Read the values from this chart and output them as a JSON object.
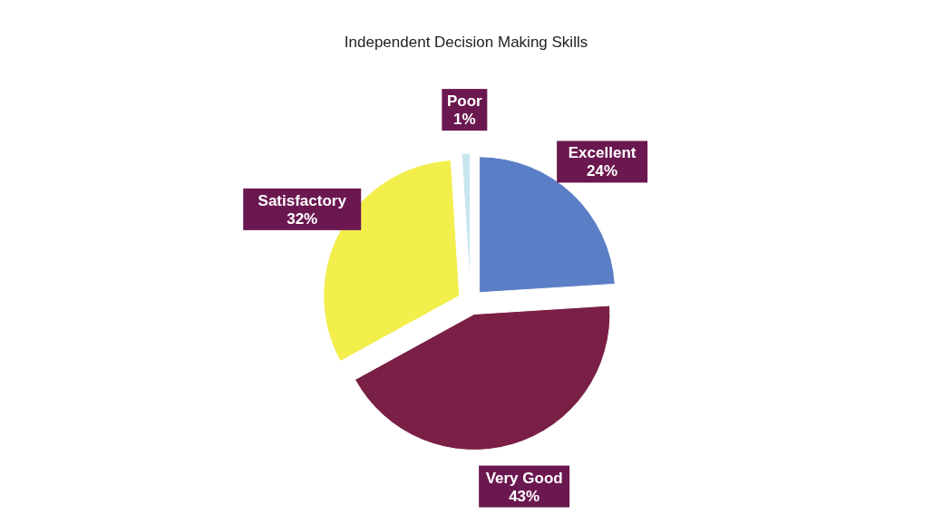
{
  "chart_data": {
    "type": "pie",
    "title": "Independent Decision Making Skills",
    "categories": [
      "Excellent",
      "Very Good",
      "Satisfactory",
      "Poor"
    ],
    "values": [
      24,
      43,
      32,
      1
    ],
    "colors": [
      "#5b7fc6",
      "#7a1f45",
      "#f2ee4c",
      "#c6e6f0"
    ],
    "value_labels": [
      "24%",
      "43%",
      "32%",
      "1%"
    ],
    "legend": false
  }
}
